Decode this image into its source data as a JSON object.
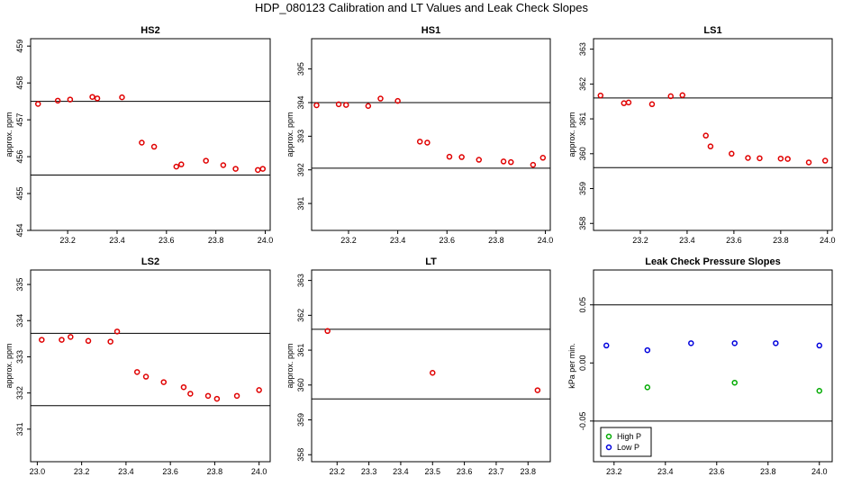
{
  "title": "HDP_080123 Calibration and LT Values and Leak Check Slopes",
  "chart_data": [
    {
      "type": "scatter",
      "title": "HS2",
      "ylabel": "approx. ppm",
      "xlim": [
        23.05,
        24.02
      ],
      "ylim": [
        454,
        459.2
      ],
      "xticks": [
        23.2,
        23.4,
        23.6,
        23.8,
        24.0
      ],
      "xtick_labels": [
        "23.2",
        "23.4",
        "23.6",
        "23.8",
        "24.0"
      ],
      "yticks": [
        454,
        455,
        456,
        457,
        458,
        459
      ],
      "ytick_labels": [
        "454",
        "455",
        "456",
        "457",
        "458",
        "459"
      ],
      "hlines": [
        457.5,
        455.5
      ],
      "series": [
        {
          "color": "#e00000",
          "x": [
            23.08,
            23.16,
            23.21,
            23.3,
            23.32,
            23.42,
            23.5,
            23.55,
            23.64,
            23.66,
            23.76,
            23.83,
            23.88,
            23.97,
            23.99
          ],
          "y": [
            457.43,
            457.52,
            457.55,
            457.62,
            457.58,
            457.61,
            456.38,
            456.27,
            455.73,
            455.79,
            455.89,
            455.77,
            455.67,
            455.64,
            455.67
          ]
        }
      ]
    },
    {
      "type": "scatter",
      "title": "HS1",
      "ylabel": "approx. ppm",
      "xlim": [
        23.05,
        24.02
      ],
      "ylim": [
        390.2,
        395.9
      ],
      "xticks": [
        23.2,
        23.4,
        23.6,
        23.8,
        24.0
      ],
      "xtick_labels": [
        "23.2",
        "23.4",
        "23.6",
        "23.8",
        "24.0"
      ],
      "yticks": [
        391,
        392,
        393,
        394,
        395
      ],
      "ytick_labels": [
        "391",
        "392",
        "393",
        "394",
        "395"
      ],
      "hlines": [
        394.0,
        392.05
      ],
      "series": [
        {
          "color": "#e00000",
          "x": [
            23.07,
            23.16,
            23.19,
            23.28,
            23.33,
            23.4,
            23.49,
            23.52,
            23.61,
            23.66,
            23.73,
            23.83,
            23.86,
            23.95,
            23.99
          ],
          "y": [
            393.92,
            393.95,
            393.93,
            393.9,
            394.12,
            394.05,
            392.84,
            392.81,
            392.39,
            392.38,
            392.3,
            392.25,
            392.23,
            392.15,
            392.36
          ]
        }
      ]
    },
    {
      "type": "scatter",
      "title": "LS1",
      "ylabel": "approx. ppm",
      "xlim": [
        23.0,
        24.02
      ],
      "ylim": [
        357.8,
        363.3
      ],
      "xticks": [
        23.2,
        23.4,
        23.6,
        23.8,
        24.0
      ],
      "xtick_labels": [
        "23.2",
        "23.4",
        "23.6",
        "23.8",
        "24.0"
      ],
      "yticks": [
        358,
        359,
        360,
        361,
        362,
        363
      ],
      "ytick_labels": [
        "358",
        "359",
        "360",
        "361",
        "362",
        "363"
      ],
      "hlines": [
        361.6,
        359.6
      ],
      "series": [
        {
          "color": "#e00000",
          "x": [
            23.03,
            23.13,
            23.15,
            23.25,
            23.33,
            23.38,
            23.48,
            23.5,
            23.59,
            23.66,
            23.71,
            23.8,
            23.83,
            23.92,
            23.99
          ],
          "y": [
            361.67,
            361.45,
            361.47,
            361.42,
            361.65,
            361.68,
            360.52,
            360.21,
            360.0,
            359.88,
            359.87,
            359.86,
            359.85,
            359.75,
            359.8
          ]
        }
      ]
    },
    {
      "type": "scatter",
      "title": "LS2",
      "ylabel": "approx. ppm",
      "xlim": [
        22.97,
        24.05
      ],
      "ylim": [
        330.1,
        335.4
      ],
      "xticks": [
        23.0,
        23.2,
        23.4,
        23.6,
        23.8,
        24.0
      ],
      "xtick_labels": [
        "23.0",
        "23.2",
        "23.4",
        "23.6",
        "23.8",
        "24.0"
      ],
      "yticks": [
        331,
        332,
        333,
        334,
        335
      ],
      "ytick_labels": [
        "331",
        "332",
        "333",
        "334",
        "335"
      ],
      "hlines": [
        333.65,
        331.65
      ],
      "series": [
        {
          "color": "#e00000",
          "x": [
            23.02,
            23.11,
            23.15,
            23.23,
            23.33,
            23.36,
            23.45,
            23.49,
            23.57,
            23.66,
            23.69,
            23.77,
            23.81,
            23.9,
            24.0
          ],
          "y": [
            333.47,
            333.47,
            333.55,
            333.44,
            333.42,
            333.7,
            332.58,
            332.45,
            332.3,
            332.16,
            331.98,
            331.92,
            331.84,
            331.92,
            332.08
          ]
        }
      ]
    },
    {
      "type": "scatter",
      "title": "LT",
      "ylabel": "approx. ppm",
      "xlim": [
        23.12,
        23.87
      ],
      "ylim": [
        357.8,
        363.3
      ],
      "xticks": [
        23.2,
        23.3,
        23.4,
        23.5,
        23.6,
        23.7,
        23.8
      ],
      "xtick_labels": [
        "23.2",
        "23.3",
        "23.4",
        "23.5",
        "23.6",
        "23.7",
        "23.8"
      ],
      "yticks": [
        358,
        359,
        360,
        361,
        362,
        363
      ],
      "ytick_labels": [
        "358",
        "359",
        "360",
        "361",
        "362",
        "363"
      ],
      "hlines": [
        361.6,
        359.6
      ],
      "series": [
        {
          "color": "#e00000",
          "x": [
            23.17,
            23.5,
            23.83
          ],
          "y": [
            361.55,
            360.35,
            359.85
          ]
        }
      ]
    },
    {
      "type": "scatter",
      "title": "Leak Check Pressure Slopes",
      "ylabel": "kPa per min.",
      "xlim": [
        23.12,
        24.05
      ],
      "ylim": [
        -0.085,
        0.08
      ],
      "xticks": [
        23.2,
        23.4,
        23.6,
        23.8,
        24.0
      ],
      "xtick_labels": [
        "23.2",
        "23.4",
        "23.6",
        "23.8",
        "24.0"
      ],
      "yticks": [
        -0.05,
        0.0,
        0.05
      ],
      "ytick_labels": [
        "-0.05",
        "0.00",
        "0.05"
      ],
      "hlines": [
        0.05,
        -0.05
      ],
      "legend": "bottom-left",
      "series": [
        {
          "name": "High P",
          "color": "#00aa00",
          "x": [
            23.33,
            23.67,
            24.0
          ],
          "y": [
            -0.021,
            -0.017,
            -0.024
          ]
        },
        {
          "name": "Low P",
          "color": "#0000dd",
          "x": [
            23.17,
            23.33,
            23.5,
            23.67,
            23.83,
            24.0
          ],
          "y": [
            0.015,
            0.011,
            0.017,
            0.017,
            0.017,
            0.015
          ]
        }
      ]
    }
  ]
}
